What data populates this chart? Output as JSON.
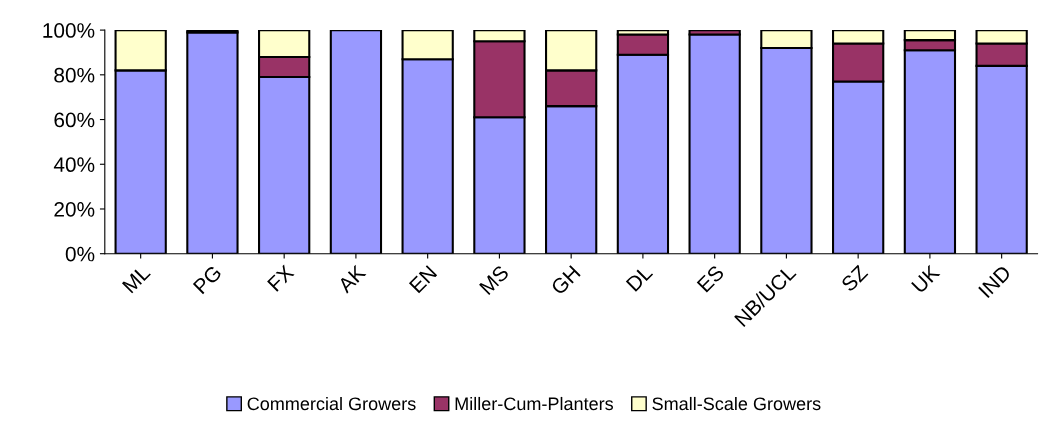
{
  "chart_data": {
    "type": "bar",
    "stacked": true,
    "categories": [
      "ML",
      "PG",
      "FX",
      "AK",
      "EN",
      "MS",
      "GH",
      "DL",
      "ES",
      "NB/UCL",
      "SZ",
      "UK",
      "IND"
    ],
    "series": [
      {
        "name": "Commercial Growers",
        "color": "#9999ff",
        "values": [
          82,
          99,
          79,
          100,
          87,
          61,
          66,
          89,
          98,
          92,
          77,
          91,
          84
        ]
      },
      {
        "name": "Miller-Cum-Planters",
        "color": "#993366",
        "values": [
          0,
          1,
          9,
          0,
          0,
          34,
          16,
          9,
          2,
          0,
          17,
          4.5,
          10
        ]
      },
      {
        "name": "Small-Scale Growers",
        "color": "#ffffcc",
        "values": [
          18,
          0,
          12,
          0,
          13,
          5,
          18,
          2,
          0,
          8,
          6,
          4.5,
          6
        ]
      }
    ],
    "ylim": [
      0,
      100
    ],
    "yticks": [
      {
        "value": 0,
        "label": "0%"
      },
      {
        "value": 20,
        "label": "20%"
      },
      {
        "value": 40,
        "label": "40%"
      },
      {
        "value": 60,
        "label": "60%"
      },
      {
        "value": 80,
        "label": "80%"
      },
      {
        "value": 100,
        "label": "100%"
      }
    ],
    "grid": false,
    "legend": "bottom"
  }
}
